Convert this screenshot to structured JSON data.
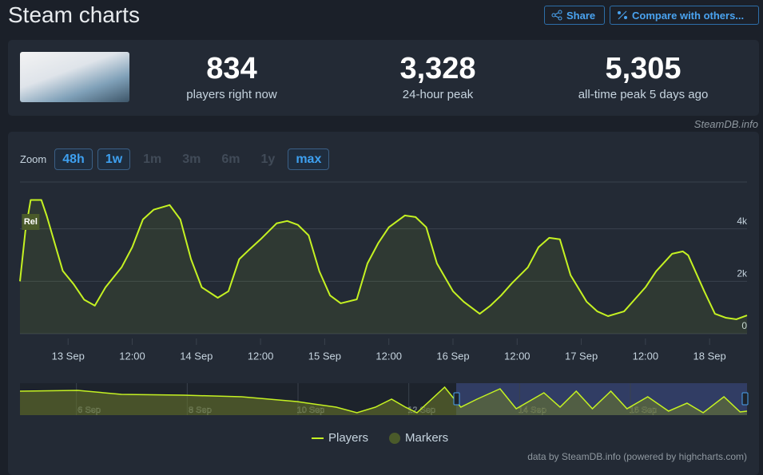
{
  "header": {
    "title": "Steam charts",
    "share": "Share",
    "compare": "Compare with others..."
  },
  "stats": [
    {
      "value": "834",
      "label": "players right now"
    },
    {
      "value": "3,328",
      "label": "24-hour peak"
    },
    {
      "value": "5,305",
      "label": "all-time peak 5 days ago"
    }
  ],
  "watermark": "SteamDB.info",
  "zoom": {
    "label": "Zoom",
    "options": [
      {
        "label": "48h",
        "enabled": true
      },
      {
        "label": "1w",
        "enabled": true
      },
      {
        "label": "1m",
        "enabled": false
      },
      {
        "label": "3m",
        "enabled": false
      },
      {
        "label": "6m",
        "enabled": false
      },
      {
        "label": "1y",
        "enabled": false
      },
      {
        "label": "max",
        "enabled": true
      }
    ]
  },
  "chart_data": {
    "type": "line",
    "x": [
      -9,
      -8,
      -7,
      -5,
      -4,
      -1,
      1,
      3,
      5,
      7,
      10,
      12,
      14,
      16,
      19,
      21,
      23,
      25,
      28,
      30,
      32,
      34,
      36,
      39,
      41,
      43,
      45,
      47,
      49,
      51,
      54,
      56,
      58,
      60,
      63,
      65,
      67,
      69,
      72,
      74,
      77,
      79,
      81,
      83,
      86,
      88,
      90,
      92,
      94,
      97,
      99,
      101,
      104,
      106,
      108,
      110,
      113,
      115,
      116,
      119,
      121,
      123,
      125,
      127
    ],
    "series": [
      {
        "name": "Players",
        "color": "#c5f222",
        "values": [
          2000,
          3900,
          5100,
          5100,
          4500,
          2400,
          1900,
          1300,
          1070,
          1770,
          2530,
          3300,
          4360,
          4730,
          4910,
          4360,
          2840,
          1770,
          1370,
          1620,
          2840,
          3230,
          3600,
          4210,
          4300,
          4150,
          3750,
          2380,
          1460,
          1160,
          1310,
          2680,
          3450,
          4060,
          4510,
          4450,
          4060,
          2680,
          1620,
          1220,
          760,
          1070,
          1460,
          1920,
          2530,
          3300,
          3660,
          3600,
          2230,
          1220,
          850,
          670,
          850,
          1310,
          1770,
          2380,
          3050,
          3140,
          2990,
          1620,
          760,
          610,
          550,
          700
        ]
      }
    ],
    "xlim": [
      -9,
      127
    ],
    "ylim": [
      0,
      6000
    ],
    "xticks": [
      {
        "value": 0,
        "label": "13 Sep"
      },
      {
        "value": 12,
        "label": "12:00"
      },
      {
        "value": 24,
        "label": "14 Sep"
      },
      {
        "value": 36,
        "label": "12:00"
      },
      {
        "value": 48,
        "label": "15 Sep"
      },
      {
        "value": 60,
        "label": "12:00"
      },
      {
        "value": 72,
        "label": "16 Sep"
      },
      {
        "value": 84,
        "label": "12:00"
      },
      {
        "value": 96,
        "label": "17 Sep"
      },
      {
        "value": 108,
        "label": "12:00"
      },
      {
        "value": 120,
        "label": "18 Sep"
      }
    ],
    "yticks": [
      0,
      {
        "value": 2000,
        "label": "2k"
      },
      {
        "value": 4000,
        "label": "4k"
      }
    ],
    "grid": true,
    "markers": {
      "name": "Markers",
      "color": "#4a5a2a",
      "items": [
        {
          "x": -7,
          "label": "Rel"
        }
      ]
    },
    "navigator": {
      "x": [
        -198,
        -173,
        -154,
        -127,
        -102,
        -78,
        -61,
        -52,
        -44,
        -37,
        -31,
        -26,
        -14,
        -7,
        0,
        10,
        17,
        29,
        36,
        43,
        50,
        58,
        65,
        74,
        83,
        91,
        98,
        107,
        114,
        117
      ],
      "values": [
        4500,
        4650,
        3900,
        3750,
        3450,
        2550,
        1500,
        450,
        1500,
        3000,
        1500,
        450,
        5250,
        1500,
        3000,
        4950,
        1200,
        4200,
        1500,
        4500,
        1200,
        4500,
        1200,
        3450,
        750,
        2250,
        450,
        3450,
        600,
        750
      ],
      "xlim": [
        -198,
        117
      ],
      "ylim": [
        0,
        6000
      ],
      "xticks": [
        {
          "value": -168,
          "label": "6 Sep"
        },
        {
          "value": -120,
          "label": "8 Sep"
        },
        {
          "value": -72,
          "label": "10 Sep"
        },
        {
          "value": -24,
          "label": "12 Sep"
        },
        {
          "value": 24,
          "label": "14 Sep"
        },
        {
          "value": 72,
          "label": "16 Sep"
        }
      ]
    },
    "credit": "data by SteamDB.info (powered by highcharts.com)"
  }
}
